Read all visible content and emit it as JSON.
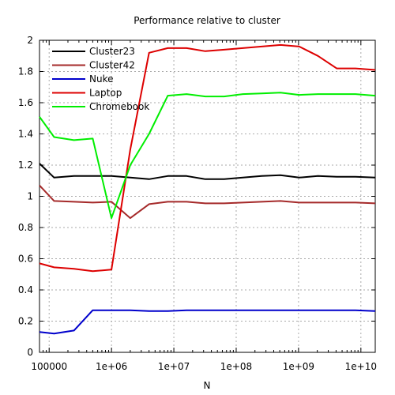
{
  "chart_data": {
    "type": "line",
    "title": "Performance relative to cluster",
    "xlabel": "N",
    "ylabel": "",
    "xscale": "log",
    "xlim": [
      70000,
      17000000000
    ],
    "ylim": [
      0,
      2
    ],
    "grid": true,
    "legend_position": "top-left",
    "x_tick_labels": [
      "100000",
      "1e+06",
      "1e+07",
      "1e+08",
      "1e+09",
      "1e+10"
    ],
    "x_tick_values": [
      100000,
      1000000,
      10000000,
      100000000,
      1000000000,
      10000000000
    ],
    "y_ticks": [
      0,
      0.2,
      0.4,
      0.6,
      0.8,
      1,
      1.2,
      1.4,
      1.6,
      1.8,
      2
    ],
    "y_tick_labels": [
      "0",
      "0.2",
      "0.4",
      "0.6",
      "0.8",
      "1",
      "1.2",
      "1.4",
      "1.6",
      "1.8",
      "2"
    ],
    "series": [
      {
        "name": "Cluster23",
        "color": "#000000",
        "points": [
          [
            70000,
            1.21
          ],
          [
            120000,
            1.12
          ],
          [
            250000,
            1.13
          ],
          [
            500000,
            1.13
          ],
          [
            1000000,
            1.13
          ],
          [
            2000000,
            1.12
          ],
          [
            4000000,
            1.11
          ],
          [
            8000000,
            1.13
          ],
          [
            16000000,
            1.13
          ],
          [
            32000000,
            1.11
          ],
          [
            64000000,
            1.11
          ],
          [
            128000000,
            1.12
          ],
          [
            256000000,
            1.13
          ],
          [
            512000000,
            1.135
          ],
          [
            1024000000,
            1.12
          ],
          [
            2048000000,
            1.13
          ],
          [
            4096000000,
            1.125
          ],
          [
            8192000000,
            1.125
          ],
          [
            17000000000,
            1.12
          ]
        ]
      },
      {
        "name": "Cluster42",
        "color": "#a52a2a",
        "points": [
          [
            70000,
            1.07
          ],
          [
            120000,
            0.97
          ],
          [
            250000,
            0.965
          ],
          [
            500000,
            0.96
          ],
          [
            1000000,
            0.965
          ],
          [
            2000000,
            0.86
          ],
          [
            4000000,
            0.95
          ],
          [
            8000000,
            0.965
          ],
          [
            16000000,
            0.965
          ],
          [
            32000000,
            0.955
          ],
          [
            64000000,
            0.955
          ],
          [
            128000000,
            0.96
          ],
          [
            256000000,
            0.965
          ],
          [
            512000000,
            0.97
          ],
          [
            1024000000,
            0.96
          ],
          [
            2048000000,
            0.96
          ],
          [
            4096000000,
            0.96
          ],
          [
            8192000000,
            0.96
          ],
          [
            17000000000,
            0.955
          ]
        ]
      },
      {
        "name": "Nuke",
        "color": "#0000cc",
        "points": [
          [
            70000,
            0.13
          ],
          [
            120000,
            0.12
          ],
          [
            250000,
            0.14
          ],
          [
            500000,
            0.27
          ],
          [
            1000000,
            0.27
          ],
          [
            2000000,
            0.27
          ],
          [
            4000000,
            0.265
          ],
          [
            8000000,
            0.265
          ],
          [
            16000000,
            0.27
          ],
          [
            32000000,
            0.27
          ],
          [
            64000000,
            0.27
          ],
          [
            128000000,
            0.27
          ],
          [
            256000000,
            0.27
          ],
          [
            512000000,
            0.27
          ],
          [
            1024000000,
            0.27
          ],
          [
            2048000000,
            0.27
          ],
          [
            4096000000,
            0.27
          ],
          [
            8192000000,
            0.27
          ],
          [
            17000000000,
            0.265
          ]
        ]
      },
      {
        "name": "Laptop",
        "color": "#dd0000",
        "points": [
          [
            70000,
            0.57
          ],
          [
            120000,
            0.545
          ],
          [
            250000,
            0.535
          ],
          [
            500000,
            0.52
          ],
          [
            1000000,
            0.53
          ],
          [
            2000000,
            1.3
          ],
          [
            4000000,
            1.92
          ],
          [
            8000000,
            1.95
          ],
          [
            16000000,
            1.95
          ],
          [
            32000000,
            1.93
          ],
          [
            64000000,
            1.94
          ],
          [
            128000000,
            1.95
          ],
          [
            256000000,
            1.96
          ],
          [
            512000000,
            1.97
          ],
          [
            1024000000,
            1.96
          ],
          [
            2048000000,
            1.9
          ],
          [
            4096000000,
            1.82
          ],
          [
            8192000000,
            1.82
          ],
          [
            17000000000,
            1.81
          ]
        ]
      },
      {
        "name": "Chromebook",
        "color": "#00ee00",
        "points": [
          [
            70000,
            1.51
          ],
          [
            120000,
            1.38
          ],
          [
            250000,
            1.36
          ],
          [
            500000,
            1.37
          ],
          [
            1000000,
            0.86
          ],
          [
            2000000,
            1.2
          ],
          [
            4000000,
            1.4
          ],
          [
            8000000,
            1.645
          ],
          [
            16000000,
            1.655
          ],
          [
            32000000,
            1.64
          ],
          [
            64000000,
            1.64
          ],
          [
            128000000,
            1.655
          ],
          [
            256000000,
            1.66
          ],
          [
            512000000,
            1.665
          ],
          [
            1024000000,
            1.65
          ],
          [
            2048000000,
            1.655
          ],
          [
            4096000000,
            1.655
          ],
          [
            8192000000,
            1.655
          ],
          [
            17000000000,
            1.645
          ]
        ]
      }
    ]
  }
}
